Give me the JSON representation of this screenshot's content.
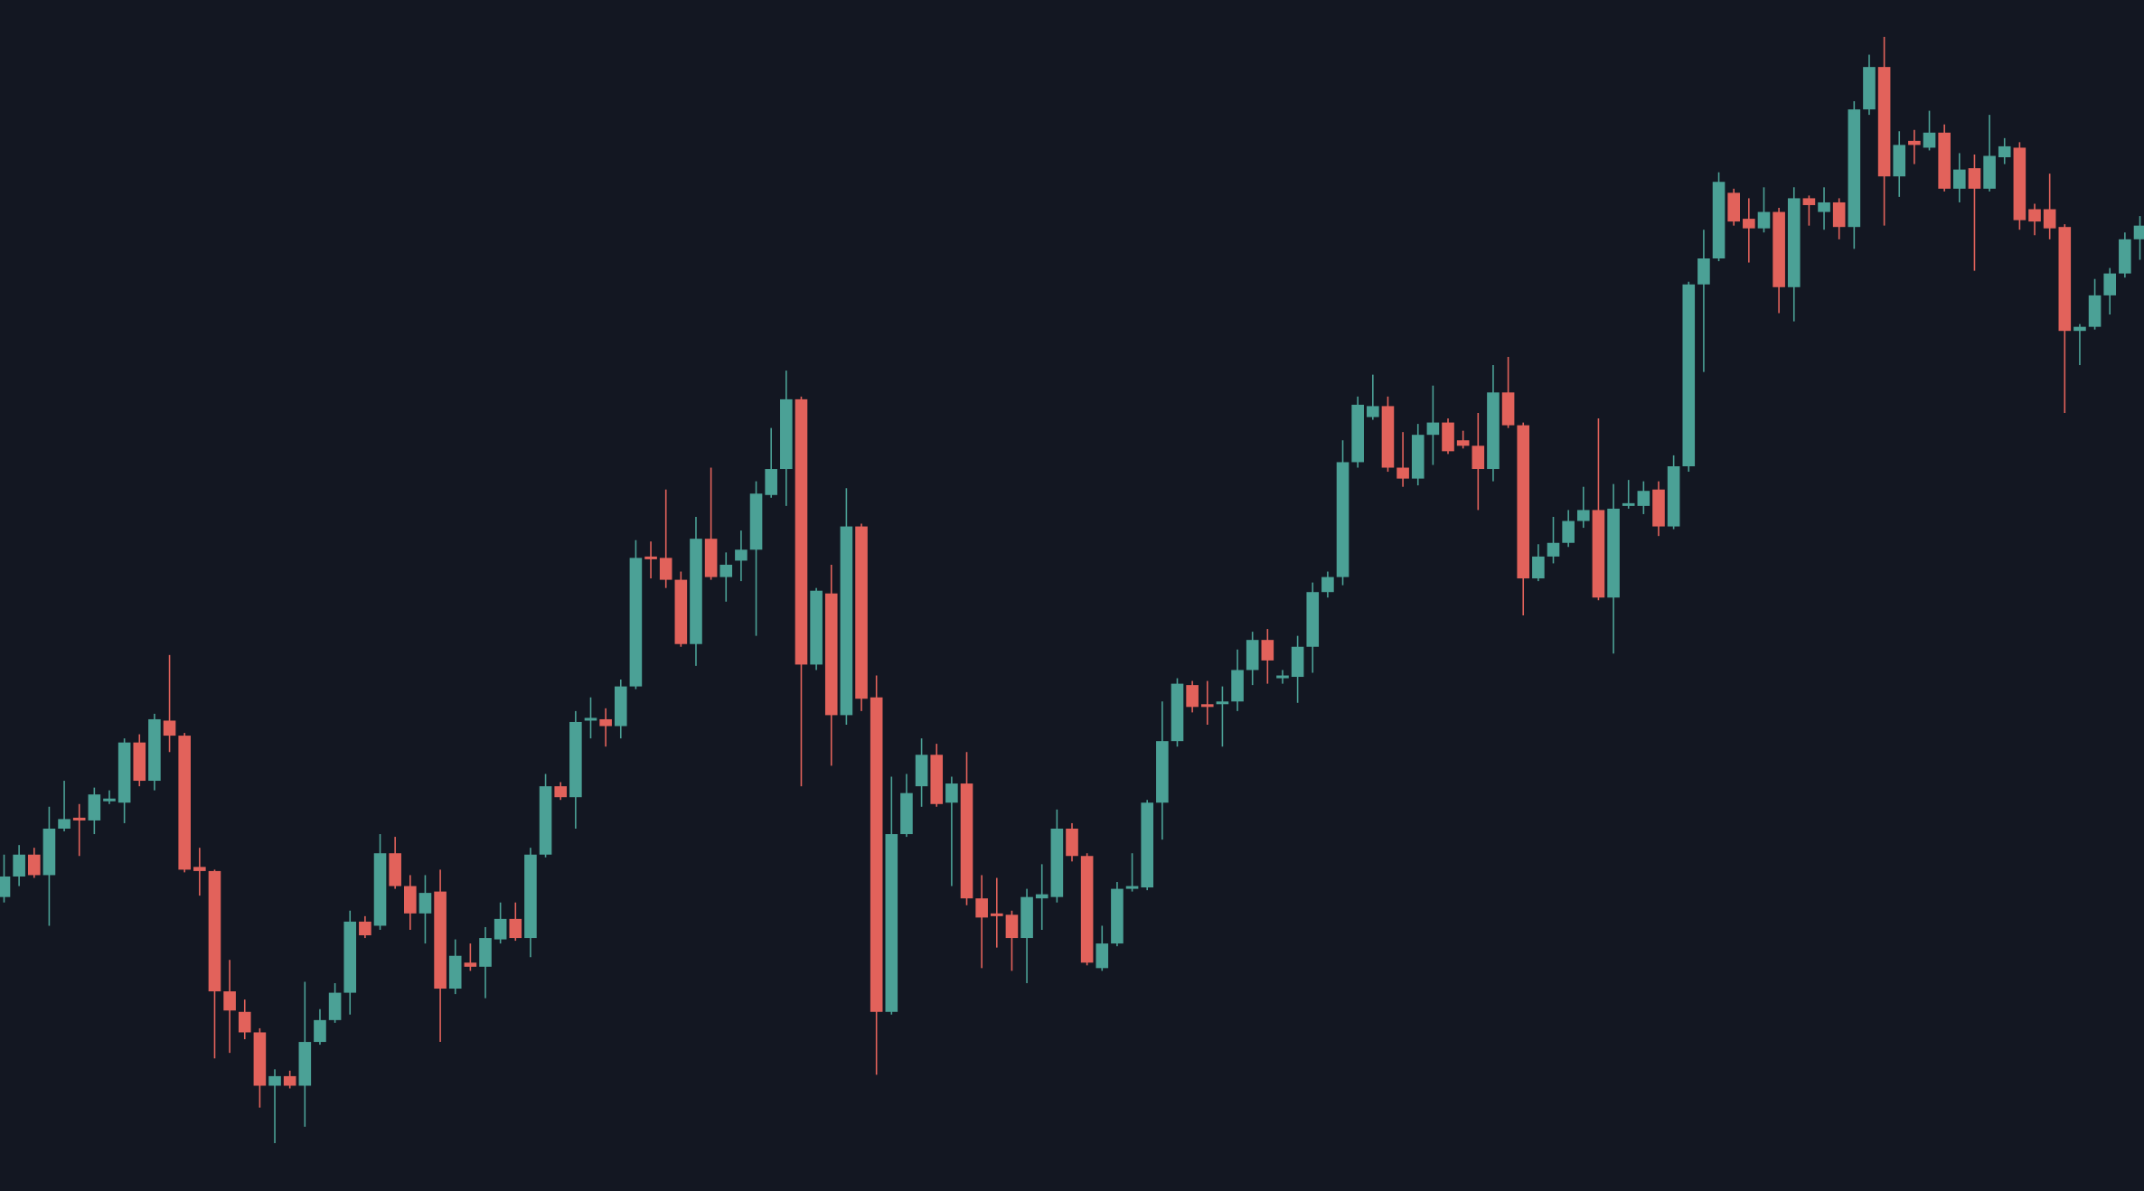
{
  "chart_data": {
    "type": "candlestick",
    "ylim": [
      29,
      900
    ],
    "up_color": "#4ba196",
    "down_color": "#e2625b",
    "background": "#131722",
    "open": [
      244,
      259,
      275,
      260,
      294,
      302,
      300,
      314,
      313,
      357,
      329,
      373,
      362,
      266,
      263,
      175,
      160,
      145,
      106,
      113,
      106,
      138,
      154,
      174,
      226,
      223,
      276,
      252,
      232,
      248,
      177,
      196,
      193,
      213,
      228,
      214,
      275,
      325,
      317,
      373,
      374,
      369,
      398,
      493,
      492,
      476,
      429,
      506,
      478,
      490,
      498,
      538,
      557,
      608,
      414,
      466,
      377,
      515,
      390,
      160,
      290,
      325,
      348,
      313,
      327,
      243,
      232,
      231,
      214,
      243,
      244,
      294,
      274,
      192,
      210,
      250,
      251,
      313,
      358,
      399,
      385,
      385,
      387,
      410,
      432,
      404,
      405,
      427,
      467,
      478,
      562,
      595,
      603,
      558,
      550,
      582,
      591,
      578,
      574,
      557,
      613,
      589,
      477,
      493,
      503,
      519,
      527,
      463,
      530,
      530,
      542,
      515,
      559,
      692,
      711,
      759,
      740,
      733,
      745,
      690,
      755,
      745,
      752,
      734,
      820,
      851,
      771,
      797,
      792,
      803,
      762,
      777,
      762,
      785,
      792,
      747,
      747,
      734,
      658,
      661,
      684,
      700,
      725
    ],
    "high": [
      275,
      282,
      280,
      310,
      329,
      312,
      324,
      322,
      360,
      363,
      378,
      421,
      364,
      280,
      264,
      198,
      169,
      148,
      118,
      117,
      182,
      162,
      181,
      234,
      230,
      290,
      288,
      260,
      260,
      264,
      213,
      210,
      222,
      240,
      240,
      280,
      334,
      328,
      380,
      390,
      382,
      403,
      505,
      504,
      542,
      482,
      522,
      558,
      496,
      512,
      548,
      587,
      629,
      610,
      470,
      487,
      543,
      517,
      406,
      332,
      334,
      360,
      356,
      332,
      350,
      260,
      258,
      234,
      250,
      268,
      308,
      298,
      276,
      223,
      255,
      276,
      315,
      387,
      404,
      402,
      402,
      398,
      425,
      438,
      440,
      410,
      435,
      474,
      482,
      578,
      610,
      626,
      610,
      584,
      590,
      618,
      594,
      585,
      598,
      633,
      639,
      591,
      502,
      522,
      527,
      544,
      594,
      546,
      549,
      548,
      548,
      567,
      694,
      732,
      774,
      762,
      755,
      763,
      748,
      763,
      757,
      763,
      755,
      826,
      860,
      873,
      804,
      805,
      819,
      809,
      788,
      787,
      816,
      799,
      796,
      751,
      773,
      736,
      663,
      696,
      704,
      730,
      742
    ],
    "low": [
      240,
      252,
      258,
      223,
      292,
      274,
      290,
      312,
      298,
      325,
      322,
      350,
      262,
      245,
      126,
      130,
      140,
      90,
      64,
      104,
      76,
      136,
      152,
      158,
      214,
      220,
      250,
      220,
      210,
      138,
      173,
      190,
      170,
      210,
      212,
      200,
      273,
      315,
      294,
      360,
      354,
      360,
      396,
      477,
      470,
      427,
      413,
      476,
      460,
      475,
      435,
      536,
      530,
      325,
      410,
      340,
      370,
      380,
      114,
      158,
      288,
      310,
      310,
      252,
      238,
      192,
      207,
      190,
      181,
      220,
      240,
      270,
      194,
      190,
      208,
      248,
      249,
      286,
      354,
      379,
      370,
      354,
      380,
      399,
      400,
      400,
      386,
      408,
      463,
      472,
      558,
      593,
      555,
      544,
      545,
      560,
      568,
      572,
      527,
      548,
      587,
      450,
      475,
      488,
      500,
      514,
      461,
      422,
      528,
      524,
      508,
      513,
      555,
      628,
      709,
      735,
      708,
      730,
      671,
      665,
      735,
      732,
      725,
      718,
      816,
      735,
      756,
      780,
      790,
      760,
      752,
      702,
      760,
      780,
      732,
      728,
      725,
      598,
      633,
      659,
      670,
      697,
      710
    ],
    "close": [
      259,
      275,
      260,
      294,
      301,
      300,
      319,
      316,
      357,
      329,
      374,
      362,
      264,
      263,
      175,
      161,
      145,
      106,
      113,
      106,
      138,
      154,
      174,
      226,
      216,
      276,
      252,
      232,
      247,
      177,
      201,
      193,
      214,
      228,
      214,
      275,
      325,
      317,
      372,
      375,
      369,
      398,
      492,
      491,
      476,
      429,
      506,
      478,
      487,
      498,
      539,
      557,
      608,
      414,
      468,
      377,
      515,
      389,
      160,
      290,
      320,
      348,
      312,
      327,
      243,
      229,
      230,
      214,
      244,
      246,
      294,
      274,
      196,
      210,
      250,
      252,
      313,
      358,
      400,
      383,
      383,
      387,
      410,
      432,
      417,
      406,
      427,
      467,
      478,
      562,
      604,
      603,
      558,
      550,
      582,
      591,
      570,
      574,
      557,
      613,
      589,
      477,
      493,
      503,
      519,
      527,
      463,
      528,
      532,
      541,
      515,
      559,
      692,
      711,
      767,
      738,
      733,
      745,
      690,
      755,
      750,
      752,
      734,
      820,
      851,
      771,
      794,
      794,
      803,
      762,
      776,
      762,
      786,
      793,
      739,
      738,
      733,
      658,
      661,
      684,
      700,
      725,
      735
    ]
  }
}
